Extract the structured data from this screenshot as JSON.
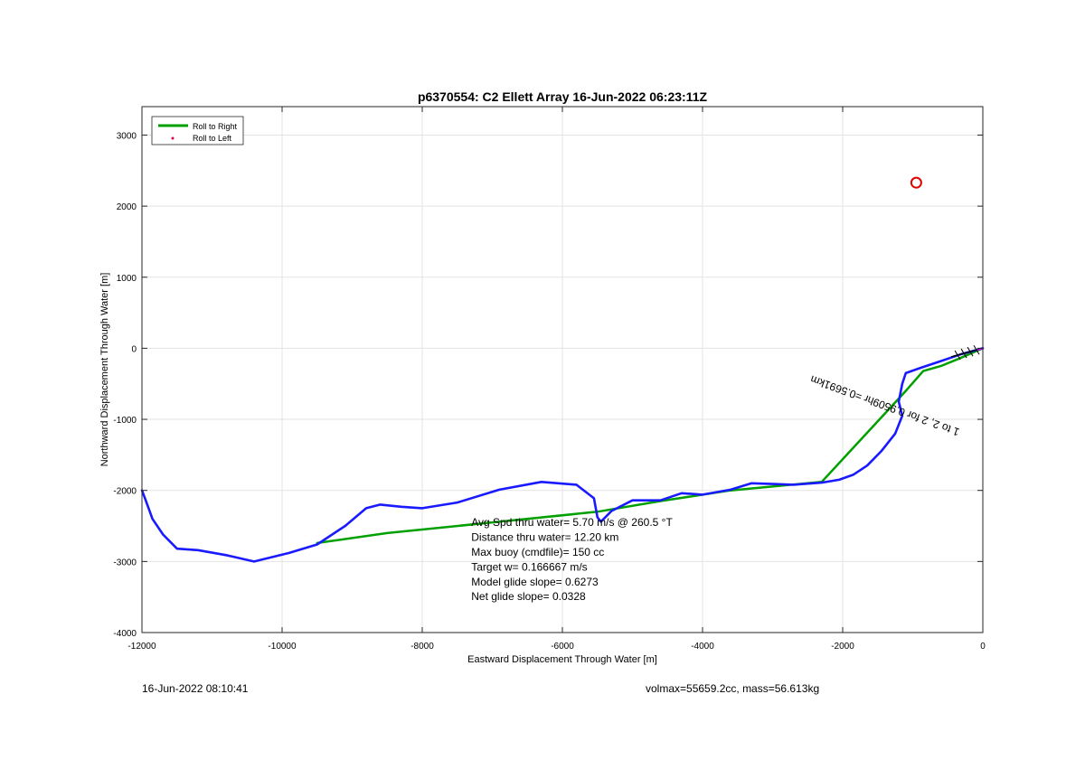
{
  "chart_data": {
    "type": "line",
    "title": "p6370554: C2 Ellett Array 16-Jun-2022 06:23:11Z",
    "xlabel": "Eastward Displacement Through Water [m]",
    "ylabel": "Northward Displacement Through Water [m]",
    "xlim": [
      -12000,
      0
    ],
    "ylim": [
      -4000,
      3400
    ],
    "xticks": [
      -12000,
      -10000,
      -8000,
      -6000,
      -4000,
      -2000,
      0
    ],
    "yticks": [
      -4000,
      -3000,
      -2000,
      -1000,
      0,
      1000,
      2000,
      3000
    ],
    "grid": true,
    "legend_position": "top-left",
    "legend": [
      {
        "label": "Roll to Right",
        "color": "#00a000",
        "marker": "line"
      },
      {
        "label": "Roll to Left",
        "color": "#e0004f",
        "marker": "dot"
      }
    ],
    "series": [
      {
        "name": "Roll to Right",
        "color": "#00a000",
        "x": [
          0,
          -350,
          -600,
          -850,
          -1100,
          -2300,
          -3600,
          -4600,
          -5500,
          -7000,
          -8500,
          -9500
        ],
        "y": [
          0,
          -150,
          -250,
          -320,
          -600,
          -1880,
          -2000,
          -2150,
          -2300,
          -2450,
          -2600,
          -2740
        ]
      },
      {
        "color": "#1a1aff",
        "x": [
          0,
          -300,
          -600,
          -900,
          -1100,
          -1150,
          -1200,
          -1150,
          -1250,
          -1450,
          -1650,
          -1850,
          -2050,
          -2300,
          -2700,
          -3000,
          -3300,
          -3600,
          -4000,
          -4300,
          -4600,
          -5000,
          -5300,
          -5450,
          -5500,
          -5550,
          -5800,
          -6300,
          -6900,
          -7500,
          -8000,
          -8300,
          -8600,
          -8800,
          -9100,
          -9500,
          -9900,
          -10400,
          -10800,
          -11200,
          -11500,
          -11700,
          -11850,
          -11950,
          -12000
        ],
        "y": [
          0,
          -80,
          -180,
          -280,
          -350,
          -500,
          -750,
          -950,
          -1200,
          -1450,
          -1650,
          -1780,
          -1850,
          -1890,
          -1920,
          -1910,
          -1900,
          -1990,
          -2060,
          -2040,
          -2140,
          -2140,
          -2290,
          -2440,
          -2380,
          -2110,
          -1920,
          -1880,
          -1990,
          -2170,
          -2250,
          -2230,
          -2200,
          -2250,
          -2500,
          -2760,
          -2880,
          -3000,
          -2910,
          -2840,
          -2820,
          -2620,
          -2400,
          -2130,
          -2000
        ]
      }
    ],
    "arrow": {
      "color": "#000000",
      "from": [
        0,
        0
      ],
      "to": [
        -450,
        -120
      ]
    },
    "target": {
      "color": "#e00000",
      "x": -950,
      "y": 2330
    },
    "annotations": [
      {
        "text": "Avg Spd thru water=  5.70 m/s @ 260.5 °T",
        "x": -7300,
        "y": -2500
      },
      {
        "text": "Distance thru water= 12.20 km",
        "x": -7300,
        "y": -2710
      },
      {
        "text": "Max buoy (cmdfile)= 150 cc",
        "x": -7300,
        "y": -2920
      },
      {
        "text": "Target w= 0.166667 m/s",
        "x": -7300,
        "y": -3130
      },
      {
        "text": "Model glide slope= 0.6273",
        "x": -7300,
        "y": -3340
      },
      {
        "text": "Net glide slope= 0.0328",
        "x": -7300,
        "y": -3540
      }
    ],
    "rotated_label": {
      "text": "1 to 2, 2 for 0.9509hr =0.5691km",
      "color": "#000000",
      "x": -1380,
      "y": -760,
      "rotation_deg": 200
    }
  },
  "footer": {
    "left": "16-Jun-2022 08:10:41",
    "right": "volmax=55659.2cc, mass=56.613kg"
  }
}
